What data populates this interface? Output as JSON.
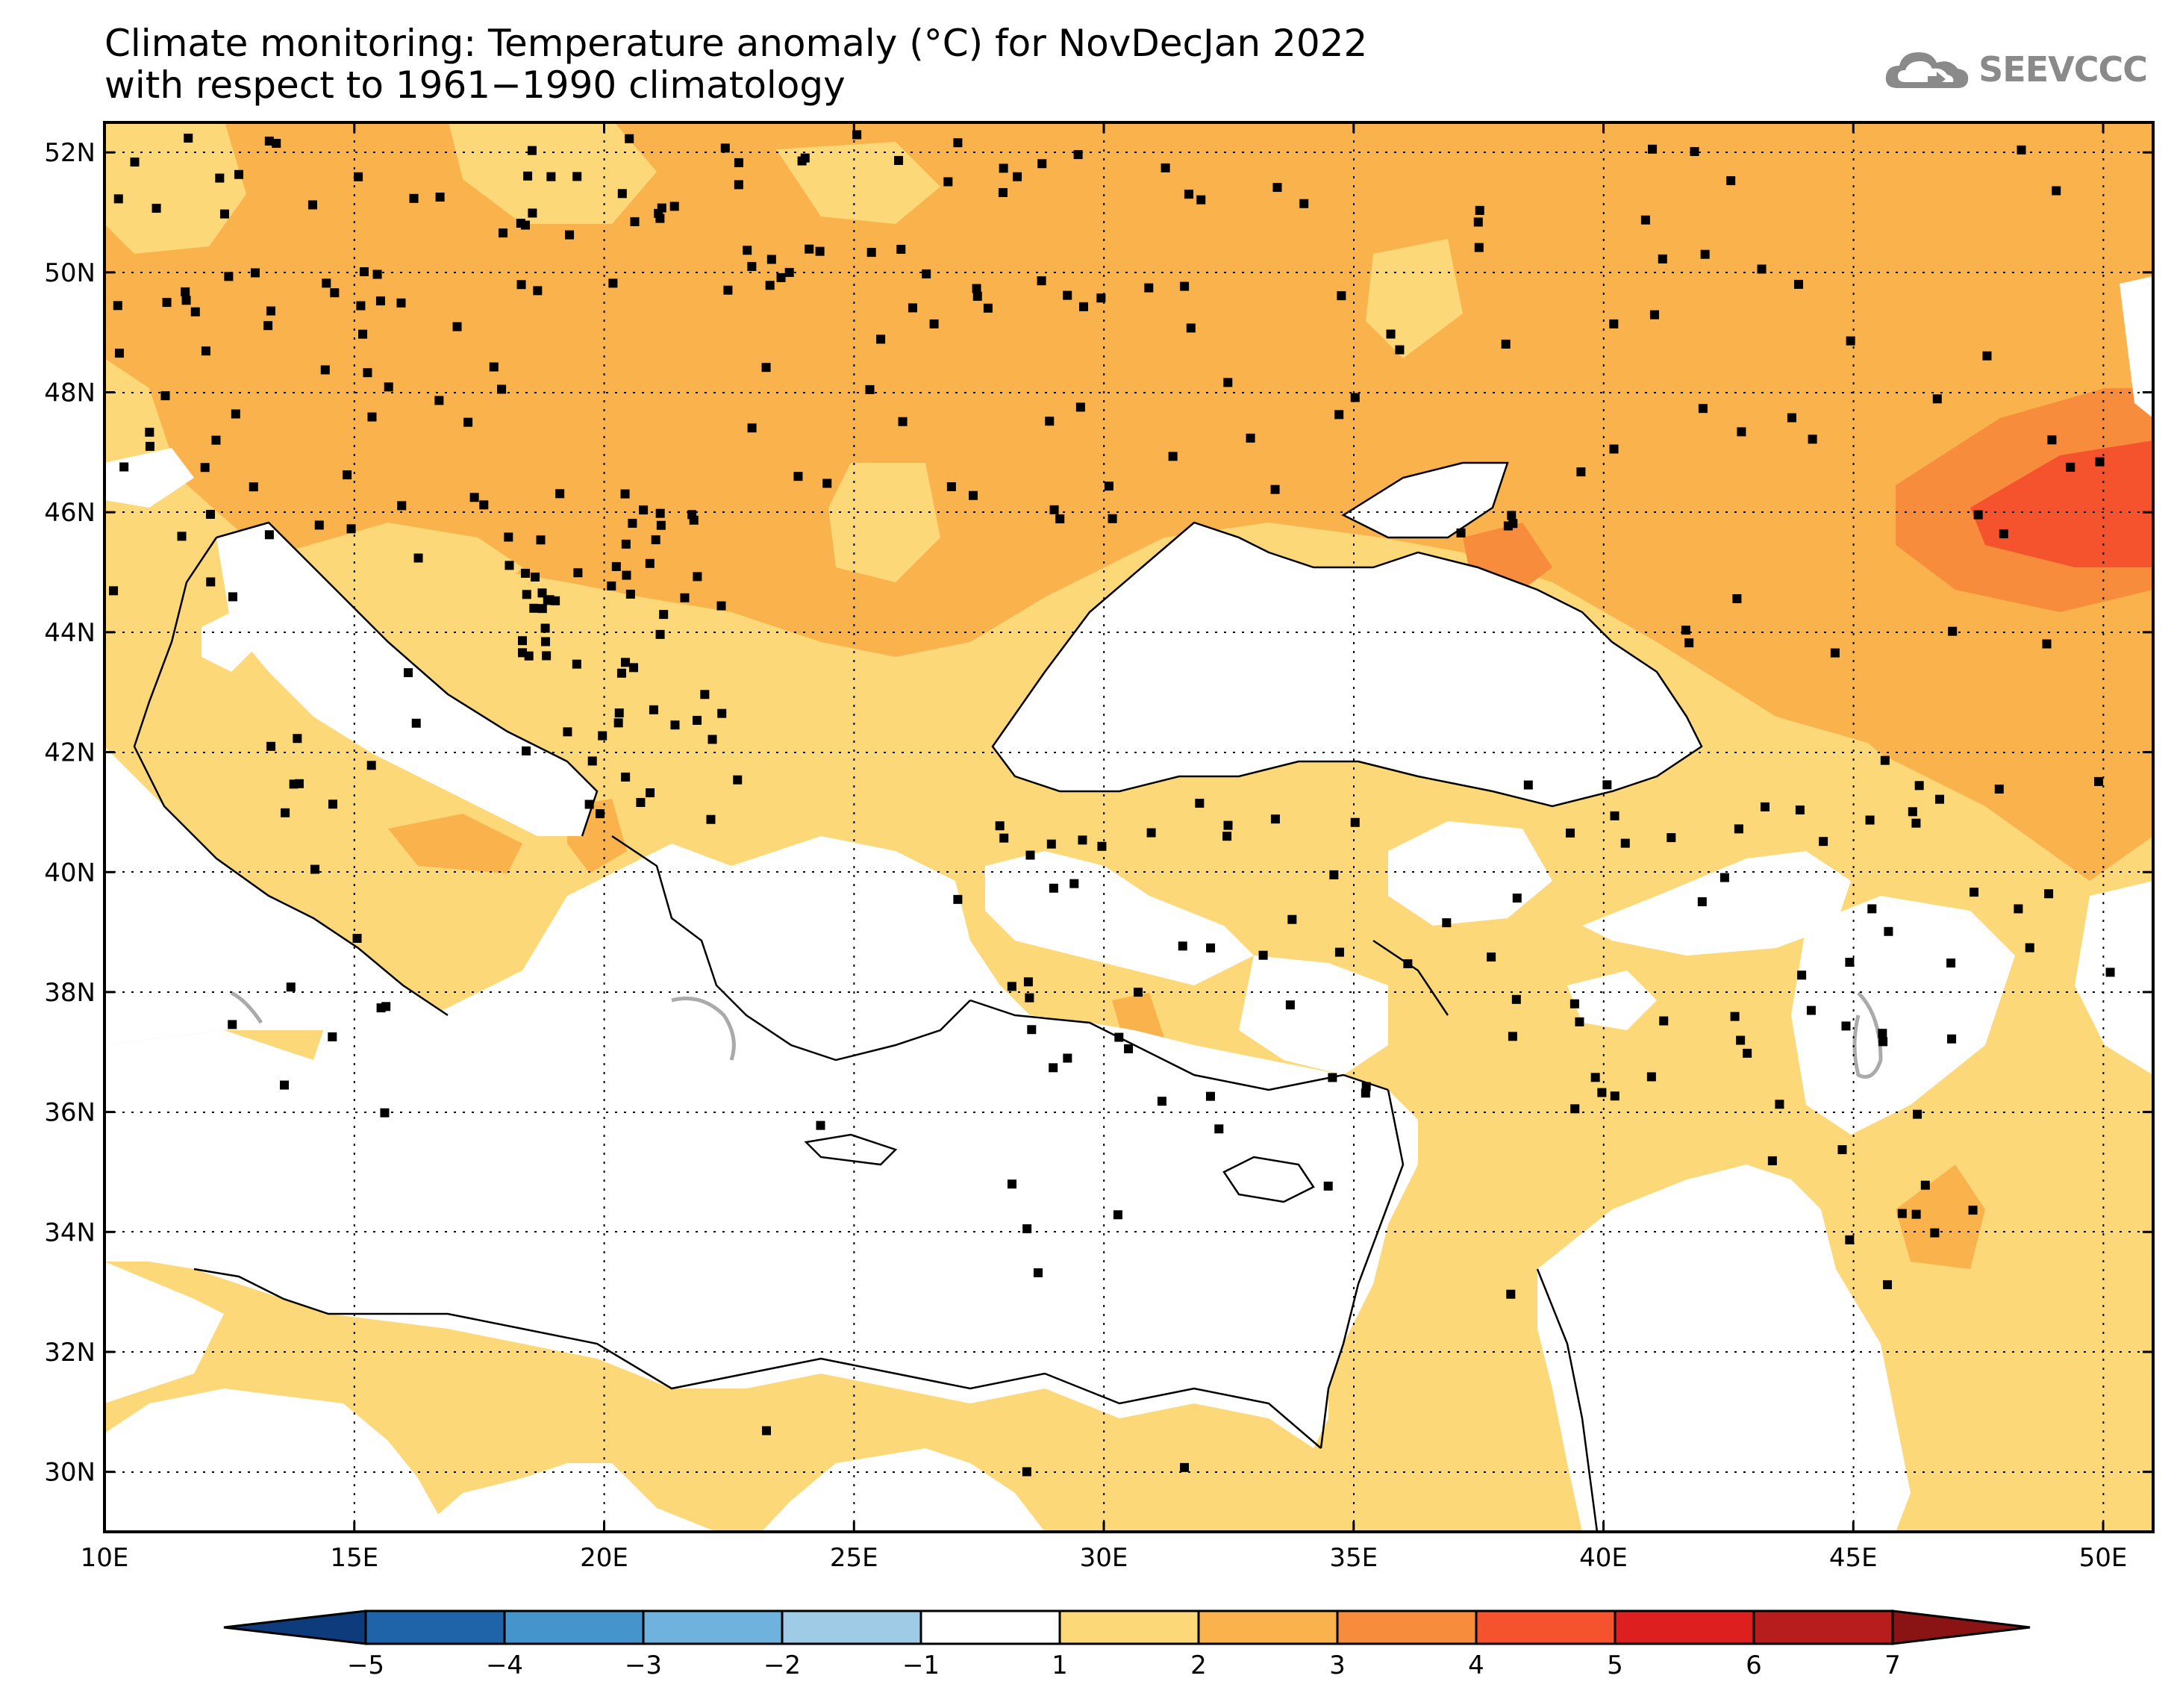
{
  "title": {
    "line1": "Climate monitoring: Temperature anomaly (°C) for NovDecJan 2022",
    "line2": "with respect to 1961−1990 climatology"
  },
  "logo": {
    "text": "SEEVCCC",
    "icon": "cloud-icon"
  },
  "map": {
    "lon_range": [
      10,
      51
    ],
    "lat_range": [
      29,
      52.5
    ],
    "lon_ticks": [
      "10E",
      "15E",
      "20E",
      "25E",
      "30E",
      "35E",
      "40E",
      "45E",
      "50E"
    ],
    "lat_ticks": [
      "30N",
      "32N",
      "34N",
      "36N",
      "38N",
      "40N",
      "42N",
      "44N",
      "46N",
      "48N",
      "50N",
      "52N"
    ],
    "grid": "dotted"
  },
  "colorbar": {
    "labels": [
      "−5",
      "−4",
      "−3",
      "−2",
      "−1",
      "1",
      "2",
      "3",
      "4",
      "5",
      "6",
      "7"
    ],
    "colors": [
      "#0e3b7c",
      "#1f63a8",
      "#4594cc",
      "#6eb2dd",
      "#9fcbe6",
      "#ffffff",
      "#fdd878",
      "#f9b24c",
      "#f68c3c",
      "#f4532e",
      "#de1f1f",
      "#b81d1d",
      "#8a1414"
    ]
  }
}
